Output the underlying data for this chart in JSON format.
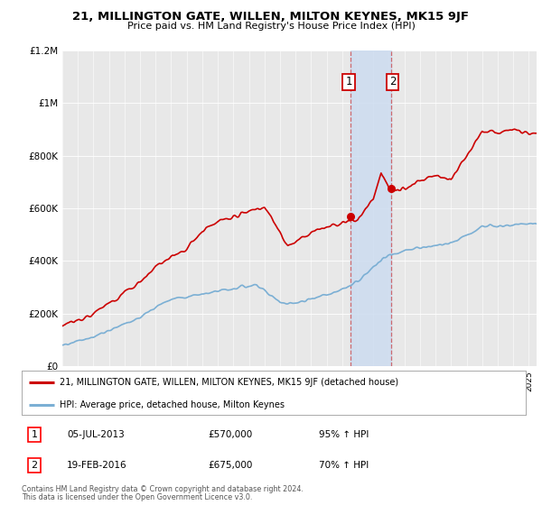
{
  "title": "21, MILLINGTON GATE, WILLEN, MILTON KEYNES, MK15 9JF",
  "subtitle": "Price paid vs. HM Land Registry's House Price Index (HPI)",
  "red_label": "21, MILLINGTON GATE, WILLEN, MILTON KEYNES, MK15 9JF (detached house)",
  "blue_label": "HPI: Average price, detached house, Milton Keynes",
  "sale1_date": "05-JUL-2013",
  "sale1_price": 570000,
  "sale1_pct": "95% ↑ HPI",
  "sale2_date": "19-FEB-2016",
  "sale2_price": 675000,
  "sale2_pct": "70% ↑ HPI",
  "footer_line1": "Contains HM Land Registry data © Crown copyright and database right 2024.",
  "footer_line2": "This data is licensed under the Open Government Licence v3.0.",
  "ylim": [
    0,
    1200000
  ],
  "xmin": 1995.0,
  "xmax": 2025.5,
  "background_color": "#ffffff",
  "plot_bg": "#e8e8e8",
  "shade_color": "#ccdcf0",
  "shade_alpha": 0.85,
  "red_color": "#cc0000",
  "blue_color": "#7bafd4",
  "grid_color": "#ffffff"
}
